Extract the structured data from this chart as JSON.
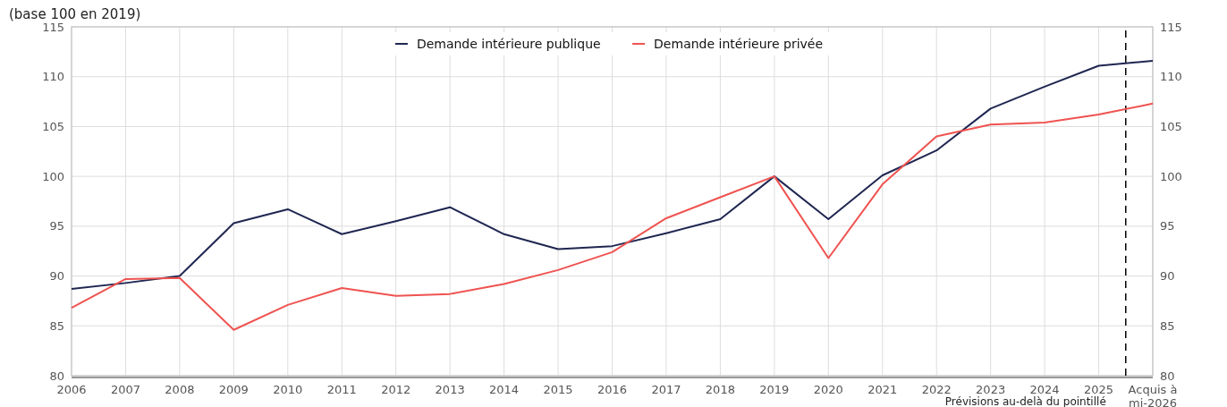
{
  "chart_data": {
    "type": "line",
    "subtitle": "(base 100 en 2019)",
    "x": [
      2006,
      2007,
      2008,
      2009,
      2010,
      2011,
      2012,
      2013,
      2014,
      2015,
      2016,
      2017,
      2018,
      2019,
      2020,
      2021,
      2022,
      2023,
      2024,
      2025,
      2026
    ],
    "xlim": [
      2006,
      2026
    ],
    "xticks": [
      2006,
      2007,
      2008,
      2009,
      2010,
      2011,
      2012,
      2013,
      2014,
      2015,
      2016,
      2017,
      2018,
      2019,
      2020,
      2021,
      2022,
      2023,
      2024,
      2025,
      {
        "value": 2026,
        "label": "Acquis à\nmi-2026"
      }
    ],
    "ylim": [
      80,
      115
    ],
    "yticks": [
      80,
      85,
      90,
      95,
      100,
      105,
      110,
      115
    ],
    "y2lim": [
      80,
      115
    ],
    "y2ticks": [
      80,
      85,
      90,
      95,
      100,
      105,
      110,
      115
    ],
    "series": [
      {
        "name": "Demande intérieure publique",
        "color": "#1f2651",
        "values": [
          88.7,
          89.3,
          90.0,
          95.3,
          96.7,
          94.2,
          95.5,
          96.9,
          94.2,
          92.7,
          93.0,
          94.3,
          95.7,
          100,
          95.7,
          100.1,
          102.6,
          106.8,
          109.0,
          111.1,
          111.6
        ]
      },
      {
        "name": "Demande intérieure privée",
        "color": "#ef5350",
        "values": [
          86.8,
          89.7,
          89.8,
          84.6,
          87.1,
          88.8,
          88.0,
          88.2,
          89.2,
          90.6,
          92.4,
          95.8,
          97.9,
          100,
          91.8,
          99.2,
          104.0,
          105.2,
          105.4,
          106.2,
          107.3
        ]
      }
    ],
    "ref_lines": [
      {
        "axis": "x",
        "value": 2025.5,
        "color": "#000000",
        "line_style": "dashed"
      }
    ],
    "annotations": [
      "Prévisions au-delà du pointillé"
    ],
    "grid": true,
    "legend": "top",
    "line_style": "solid",
    "marker": "none"
  }
}
